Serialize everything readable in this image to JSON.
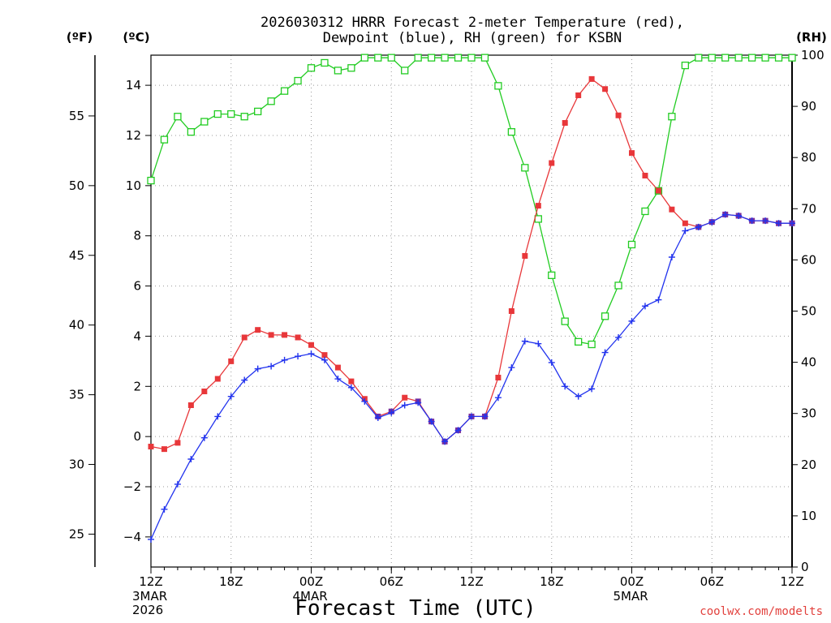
{
  "title_lines": [
    "2026030312 HRRR Forecast 2-meter Temperature (red),",
    "Dewpoint (blue), RH (green) for KSBN"
  ],
  "units": {
    "fahrenheit": "(ºF)",
    "celsius": "(ºC)",
    "rh": "(RH)"
  },
  "credit": "coolwx.com/modelts",
  "colors": {
    "temperature": "#e8373a",
    "dewpoint": "#2233ee",
    "rh": "#22cc22",
    "overlap": "#7a2f9a"
  },
  "chart_data": {
    "type": "line",
    "title": "2026030312 HRRR Forecast 2-meter Temperature (red), Dewpoint (blue), RH (green) for KSBN",
    "xlabel": "Forecast Time (UTC)",
    "x_hours": [
      0,
      1,
      2,
      3,
      4,
      5,
      6,
      7,
      8,
      9,
      10,
      11,
      12,
      13,
      14,
      15,
      16,
      17,
      18,
      19,
      20,
      21,
      22,
      23,
      24,
      25,
      26,
      27,
      28,
      29,
      30,
      31,
      32,
      33,
      34,
      35,
      36,
      37,
      38,
      39,
      40,
      41,
      42,
      43,
      44,
      45,
      46,
      47,
      48
    ],
    "x_ticks": [
      {
        "hour": 0,
        "label": "12Z",
        "sub": [
          "3MAR",
          "2026"
        ]
      },
      {
        "hour": 6,
        "label": "18Z",
        "sub": []
      },
      {
        "hour": 12,
        "label": "00Z",
        "sub": [
          "4MAR"
        ]
      },
      {
        "hour": 18,
        "label": "06Z",
        "sub": []
      },
      {
        "hour": 24,
        "label": "12Z",
        "sub": []
      },
      {
        "hour": 30,
        "label": "18Z",
        "sub": []
      },
      {
        "hour": 36,
        "label": "00Z",
        "sub": [
          "5MAR"
        ]
      },
      {
        "hour": 42,
        "label": "06Z",
        "sub": []
      },
      {
        "hour": 48,
        "label": "12Z",
        "sub": []
      }
    ],
    "y_left_celsius": {
      "lim": [
        -5.2,
        15.2
      ],
      "ticks": [
        "-4",
        "-2",
        "0",
        "2",
        "4",
        "6",
        "8",
        "10",
        "12",
        "14"
      ],
      "tick_values": [
        -4,
        -2,
        0,
        2,
        4,
        6,
        8,
        10,
        12,
        14
      ]
    },
    "y_left_fahrenheit": {
      "ticks": [
        "25",
        "30",
        "35",
        "40",
        "45",
        "50",
        "55"
      ],
      "tick_values": [
        25,
        30,
        35,
        40,
        45,
        50,
        55
      ]
    },
    "y_right_rh": {
      "lim": [
        0,
        100
      ],
      "ticks": [
        "0",
        "10",
        "20",
        "30",
        "40",
        "50",
        "60",
        "70",
        "80",
        "90",
        "100"
      ],
      "tick_values": [
        0,
        10,
        20,
        30,
        40,
        50,
        60,
        70,
        80,
        90,
        100
      ]
    },
    "grid": true,
    "series": [
      {
        "name": "Temperature",
        "axis": "celsius",
        "marker": "filled-square",
        "values": [
          -0.4,
          -0.5,
          -0.25,
          1.25,
          1.8,
          2.3,
          3.0,
          3.95,
          4.25,
          4.05,
          4.05,
          3.95,
          3.65,
          3.25,
          2.75,
          2.2,
          1.5,
          0.8,
          1.0,
          1.55,
          1.4,
          0.6,
          -0.2,
          0.25,
          0.8,
          0.8,
          2.35,
          5.0,
          7.2,
          9.2,
          10.9,
          12.5,
          13.6,
          14.25,
          13.85,
          12.8,
          11.3,
          10.4,
          9.8,
          9.05,
          8.5,
          8.35,
          8.55,
          8.85,
          8.8,
          8.6,
          8.6,
          8.5,
          8.5
        ]
      },
      {
        "name": "Dewpoint",
        "axis": "celsius",
        "marker": "plus",
        "values": [
          -4.1,
          -2.9,
          -1.9,
          -0.9,
          -0.05,
          0.8,
          1.6,
          2.25,
          2.7,
          2.8,
          3.05,
          3.2,
          3.3,
          3.05,
          2.3,
          1.95,
          1.4,
          0.75,
          0.95,
          1.25,
          1.35,
          0.6,
          -0.2,
          0.25,
          0.8,
          0.8,
          1.55,
          2.75,
          3.8,
          3.7,
          2.95,
          2.0,
          1.6,
          1.9,
          3.35,
          3.95,
          4.6,
          5.2,
          5.45,
          7.15,
          8.2,
          8.35,
          8.55,
          8.85,
          8.8,
          8.6,
          8.6,
          8.5,
          8.5
        ]
      },
      {
        "name": "RH",
        "axis": "rh",
        "marker": "open-square",
        "values": [
          75.5,
          83.5,
          88,
          85,
          87,
          88.5,
          88.5,
          88,
          89,
          91,
          93,
          95,
          97.5,
          98.5,
          97,
          97.5,
          99.5,
          99.5,
          99.5,
          97,
          99.5,
          99.5,
          99.5,
          99.5,
          99.5,
          99.5,
          94,
          85,
          78,
          68,
          57,
          48,
          44,
          43.5,
          49,
          55,
          63,
          69.5,
          73.5,
          88,
          98,
          99.5,
          99.5,
          99.5,
          99.5,
          99.5,
          99.5,
          99.5,
          99.5
        ]
      }
    ]
  }
}
